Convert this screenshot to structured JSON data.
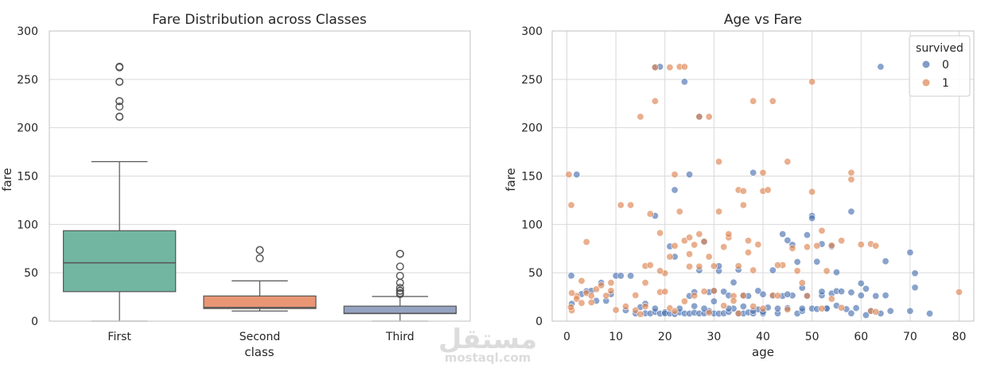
{
  "chart_data": [
    {
      "type": "box",
      "title": "Fare Distribution across Classes",
      "xlabel": "class",
      "ylabel": "fare",
      "ylim": [
        0,
        300
      ],
      "yticks": [
        0,
        50,
        100,
        150,
        200,
        250,
        300
      ],
      "grid": true,
      "categories": [
        "First",
        "Second",
        "Third"
      ],
      "colors": [
        "#72b6a1",
        "#e99675",
        "#95a3c3"
      ],
      "boxes": [
        {
          "category": "First",
          "whisker_low": 0,
          "q1": 30.5,
          "median": 60.3,
          "q3": 93.5,
          "whisker_high": 164.9,
          "outliers": [
            211.3,
            211.5,
            221.8,
            227.5,
            227.5,
            247.5,
            247.5,
            262.4,
            263.0,
            263.0
          ]
        },
        {
          "category": "Second",
          "whisker_low": 10.5,
          "q1": 13.0,
          "median": 14.25,
          "q3": 26.0,
          "whisker_high": 41.6,
          "outliers": [
            65.0,
            73.5,
            73.5
          ]
        },
        {
          "category": "Third",
          "whisker_low": 0,
          "q1": 7.75,
          "median": 8.05,
          "q3": 15.5,
          "whisker_high": 25.5,
          "outliers": [
            27.9,
            29.1,
            31.3,
            31.4,
            34.4,
            39.7,
            46.9,
            56.5,
            69.6,
            69.6
          ]
        }
      ]
    },
    {
      "type": "scatter",
      "title": "Age vs Fare",
      "xlabel": "age",
      "ylabel": "fare",
      "xlim": [
        -3,
        83
      ],
      "ylim": [
        0,
        300
      ],
      "xticks": [
        0,
        10,
        20,
        30,
        40,
        50,
        60,
        70,
        80
      ],
      "yticks": [
        0,
        50,
        100,
        150,
        200,
        250,
        300
      ],
      "grid": true,
      "legend": {
        "title": "survived",
        "position": "top-right"
      },
      "series": [
        {
          "name": "0",
          "color": "#4c72b0",
          "points": [
            [
              2,
              151.6
            ],
            [
              0.9,
              47
            ],
            [
              3,
              28
            ],
            [
              4,
              31
            ],
            [
              6,
              21
            ],
            [
              7,
              39.7
            ],
            [
              8,
              21
            ],
            [
              9,
              27.9
            ],
            [
              10,
              46.9
            ],
            [
              11,
              46.9
            ],
            [
              12,
              11.2
            ],
            [
              13,
              46.9
            ],
            [
              14,
              7.9
            ],
            [
              16,
              8.05
            ],
            [
              16,
              18
            ],
            [
              17,
              7.9
            ],
            [
              18,
              9.5
            ],
            [
              18,
              108.9
            ],
            [
              18,
              262.4
            ],
            [
              19,
              263
            ],
            [
              19,
              7.8
            ],
            [
              20,
              9.2
            ],
            [
              20,
              8.05
            ],
            [
              21,
              7.9
            ],
            [
              21,
              77.3
            ],
            [
              22,
              7.25
            ],
            [
              22,
              135.6
            ],
            [
              23,
              9.0
            ],
            [
              24,
              247.5
            ],
            [
              24,
              7.9
            ],
            [
              25,
              7.8
            ],
            [
              25,
              26
            ],
            [
              25,
              151.6
            ],
            [
              26,
              8.7
            ],
            [
              26,
              30
            ],
            [
              27,
              211.5
            ],
            [
              27,
              7.9
            ],
            [
              28,
              82.2
            ],
            [
              28,
              8.05
            ],
            [
              29,
              10.5
            ],
            [
              29,
              30
            ],
            [
              30,
              7.9
            ],
            [
              30,
              31.3
            ],
            [
              31,
              52
            ],
            [
              31,
              7.75
            ],
            [
              32,
              8.05
            ],
            [
              32,
              30.5
            ],
            [
              33,
              9.5
            ],
            [
              33,
              26.5
            ],
            [
              34,
              13
            ],
            [
              34,
              40
            ],
            [
              35,
              8.05
            ],
            [
              35,
              53.1
            ],
            [
              36,
              7.9
            ],
            [
              36,
              26.4
            ],
            [
              37,
              9.0
            ],
            [
              37,
              26
            ],
            [
              38,
              153.5
            ],
            [
              38,
              7.9
            ],
            [
              39,
              31.3
            ],
            [
              39,
              12.1
            ],
            [
              40,
              7.9
            ],
            [
              40,
              27.7
            ],
            [
              41,
              14.1
            ],
            [
              42,
              26
            ],
            [
              42,
              52.6
            ],
            [
              43,
              8.05
            ],
            [
              44,
              90
            ],
            [
              44,
              26
            ],
            [
              45,
              83.5
            ],
            [
              45,
              13.5
            ],
            [
              46,
              78.9
            ],
            [
              46,
              26.5
            ],
            [
              47,
              7.9
            ],
            [
              47,
              61.2
            ],
            [
              48,
              34.4
            ],
            [
              48,
              10.5
            ],
            [
              49,
              89.1
            ],
            [
              49,
              26.5
            ],
            [
              50,
              108.9
            ],
            [
              50,
              13
            ],
            [
              50,
              106.4
            ],
            [
              51,
              61.4
            ],
            [
              51,
              12.5
            ],
            [
              52,
              79.7
            ],
            [
              52,
              26.6
            ],
            [
              53,
              13.5
            ],
            [
              54,
              28.5
            ],
            [
              54,
              77.3
            ],
            [
              55,
              16
            ],
            [
              55,
              31
            ],
            [
              56,
              30.7
            ],
            [
              57,
              12.4
            ],
            [
              58,
              113.3
            ],
            [
              58,
              29.7
            ],
            [
              59,
              13.5
            ],
            [
              60,
              39
            ],
            [
              61,
              33.5
            ],
            [
              61,
              6.2
            ],
            [
              62,
              10.5
            ],
            [
              63,
              26
            ],
            [
              64,
              263
            ],
            [
              64,
              7.9
            ],
            [
              65,
              61.9
            ],
            [
              65,
              26.6
            ],
            [
              66,
              10.5
            ],
            [
              70,
              71
            ],
            [
              70,
              10.5
            ],
            [
              71,
              49.5
            ],
            [
              71,
              34.7
            ],
            [
              74,
              7.8
            ],
            [
              1,
              18
            ],
            [
              5,
              31.4
            ],
            [
              15,
              14.5
            ],
            [
              18,
              13
            ],
            [
              23,
              13
            ],
            [
              28,
              13
            ],
            [
              33,
              13
            ],
            [
              38,
              10.5
            ],
            [
              43,
              13
            ],
            [
              48,
              13
            ],
            [
              53,
              13
            ],
            [
              58,
              8.05
            ],
            [
              27,
              52.6
            ],
            [
              31,
              56.9
            ],
            [
              36,
              15.2
            ],
            [
              22,
              66.6
            ],
            [
              26,
              15.5
            ],
            [
              30,
              20.5
            ],
            [
              40,
              9.5
            ],
            [
              45,
              27.7
            ],
            [
              55,
              50.5
            ],
            [
              52,
              30.5
            ],
            [
              60,
              26.55
            ]
          ]
        },
        {
          "name": "1",
          "color": "#dd8452",
          "points": [
            [
              0.4,
              151.6
            ],
            [
              0.9,
              120
            ],
            [
              1,
              11.1
            ],
            [
              2,
              26
            ],
            [
              3,
              41.6
            ],
            [
              4,
              81.9
            ],
            [
              4,
              29
            ],
            [
              5,
              19.3
            ],
            [
              6,
              33
            ],
            [
              8,
              26.3
            ],
            [
              9,
              31.4
            ],
            [
              10,
              11.5
            ],
            [
              11,
              120
            ],
            [
              13,
              120
            ],
            [
              14,
              11.2
            ],
            [
              15,
              211.3
            ],
            [
              16,
              57
            ],
            [
              17,
              110.9
            ],
            [
              17,
              57.9
            ],
            [
              18,
              227.5
            ],
            [
              18,
              262.4
            ],
            [
              19,
              91.1
            ],
            [
              19,
              30
            ],
            [
              20,
              49.5
            ],
            [
              21,
              262.4
            ],
            [
              22,
              77.9
            ],
            [
              22,
              151.6
            ],
            [
              23,
              263
            ],
            [
              23,
              113.3
            ],
            [
              24,
              263
            ],
            [
              24,
              83.2
            ],
            [
              25,
              69.3
            ],
            [
              26,
              78.9
            ],
            [
              27,
              211.3
            ],
            [
              27,
              56.5
            ],
            [
              28,
              82.2
            ],
            [
              29,
              211.3
            ],
            [
              29,
              66.6
            ],
            [
              30,
              56.9
            ],
            [
              31,
              164.9
            ],
            [
              31,
              113.3
            ],
            [
              32,
              76.7
            ],
            [
              33,
              86.5
            ],
            [
              34,
              26
            ],
            [
              35,
              135.6
            ],
            [
              35,
              57
            ],
            [
              36,
              120
            ],
            [
              36,
              134.5
            ],
            [
              37,
              83.2
            ],
            [
              38,
              227.5
            ],
            [
              38,
              52.6
            ],
            [
              39,
              79.2
            ],
            [
              40,
              153.5
            ],
            [
              40,
              134.5
            ],
            [
              41,
              135.6
            ],
            [
              42,
              227.5
            ],
            [
              42,
              26.6
            ],
            [
              44,
              57.9
            ],
            [
              45,
              164.9
            ],
            [
              46,
              75.3
            ],
            [
              48,
              39.6
            ],
            [
              49,
              76.7
            ],
            [
              50,
              247.5
            ],
            [
              50,
              133.7
            ],
            [
              51,
              77.9
            ],
            [
              52,
              93.5
            ],
            [
              53,
              51.9
            ],
            [
              54,
              78.3
            ],
            [
              56,
              83.2
            ],
            [
              58,
              146.5
            ],
            [
              58,
              153.5
            ],
            [
              60,
              79.2
            ],
            [
              62,
              79.7
            ],
            [
              63,
              77.9
            ],
            [
              80,
              30
            ],
            [
              0.8,
              14.4
            ],
            [
              1,
              29.1
            ],
            [
              2,
              23
            ],
            [
              3,
              18.75
            ],
            [
              5,
              26.2
            ],
            [
              7,
              37
            ],
            [
              9,
              39.7
            ],
            [
              12,
              15.2
            ],
            [
              14,
              26.7
            ],
            [
              15,
              7.2
            ],
            [
              16,
              39.7
            ],
            [
              19,
              52
            ],
            [
              20,
              30.5
            ],
            [
              21,
              13.4
            ],
            [
              24,
              20.5
            ],
            [
              25,
              56.4
            ],
            [
              26,
              26.3
            ],
            [
              28,
              30.7
            ],
            [
              30,
              31.3
            ],
            [
              32,
              15.9
            ],
            [
              34,
              21
            ],
            [
              36,
              26.4
            ],
            [
              38,
              15.2
            ],
            [
              40,
              13
            ],
            [
              43,
              26.3
            ],
            [
              45,
              12
            ],
            [
              47,
              52
            ],
            [
              49,
              26
            ],
            [
              52,
              13
            ],
            [
              54,
              23
            ],
            [
              56,
              13.8
            ],
            [
              62,
              10.5
            ],
            [
              63,
              9.6
            ],
            [
              21,
              66.6
            ],
            [
              25,
              86.5
            ],
            [
              33,
              90
            ],
            [
              37,
              71
            ],
            [
              43,
              57.9
            ],
            [
              27,
              90
            ],
            [
              16,
              15.2
            ],
            [
              22,
              10.5
            ],
            [
              29,
              8.7
            ],
            [
              35,
              7.9
            ]
          ]
        }
      ]
    }
  ],
  "watermark": {
    "arabic": "مستقل",
    "latin": "mostaql.com"
  }
}
